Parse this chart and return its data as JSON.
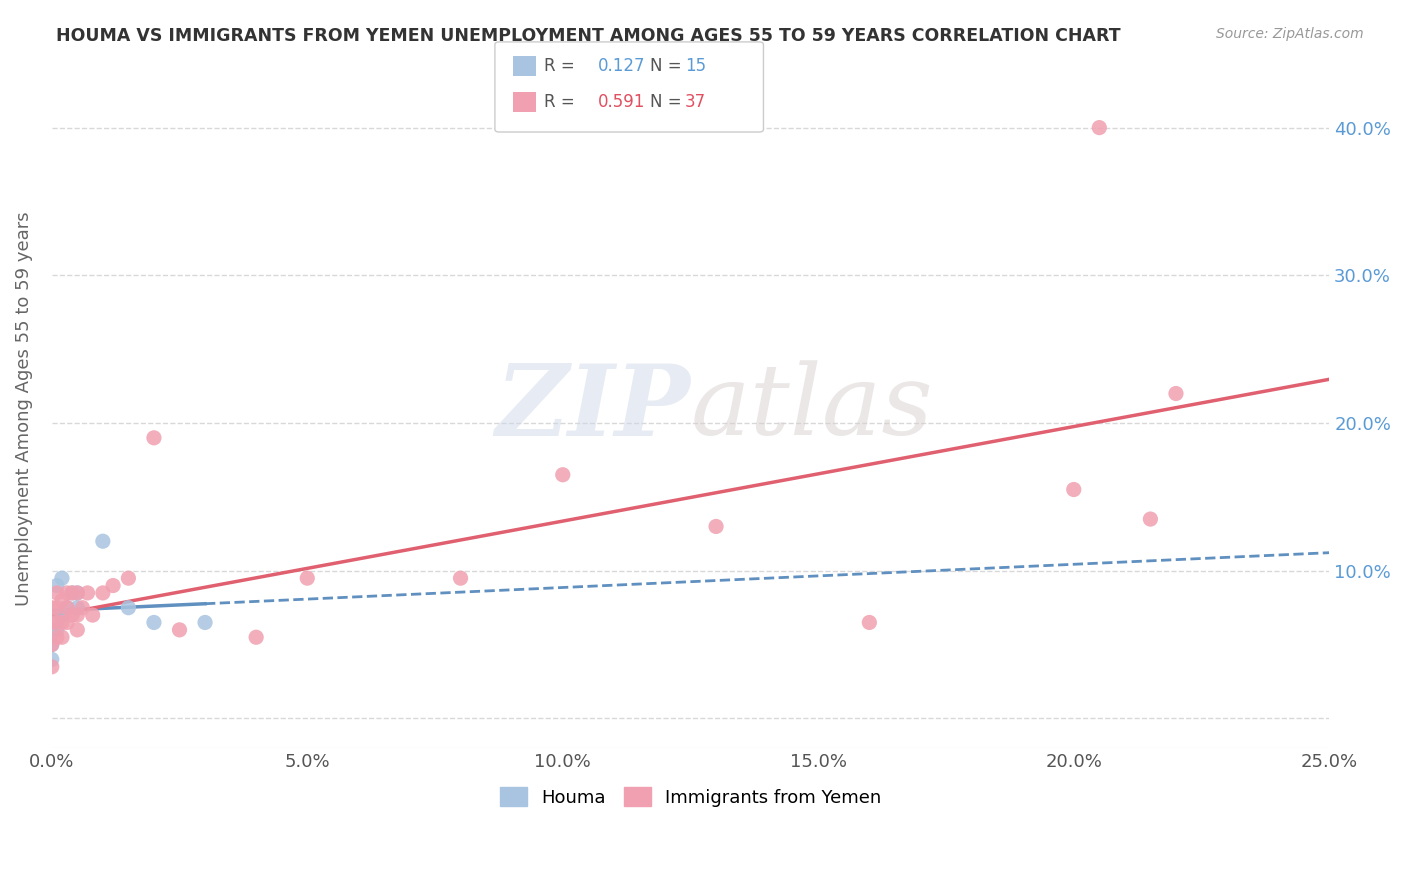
{
  "title": "HOUMA VS IMMIGRANTS FROM YEMEN UNEMPLOYMENT AMONG AGES 55 TO 59 YEARS CORRELATION CHART",
  "source": "Source: ZipAtlas.com",
  "ylabel": "Unemployment Among Ages 55 to 59 years",
  "xlim": [
    0.0,
    0.25
  ],
  "ylim": [
    -0.02,
    0.44
  ],
  "xticks": [
    0.0,
    0.05,
    0.1,
    0.15,
    0.2,
    0.25
  ],
  "xticklabels": [
    "0.0%",
    "5.0%",
    "10.0%",
    "15.0%",
    "20.0%",
    "25.0%"
  ],
  "yticks": [
    0.0,
    0.1,
    0.2,
    0.3,
    0.4
  ],
  "yticklabels": [
    "",
    "10.0%",
    "20.0%",
    "30.0%",
    "40.0%"
  ],
  "houma_R": 0.127,
  "houma_N": 15,
  "yemen_R": 0.591,
  "yemen_N": 37,
  "houma_color": "#a8c4e0",
  "yemen_color": "#f0a0b0",
  "houma_line_color": "#6090c0",
  "yemen_line_color": "#e06070",
  "background_color": "#ffffff",
  "grid_color": "#d8d8d8",
  "watermark": "ZIPatlas",
  "houma_x": [
    0.0,
    0.0,
    0.0,
    0.001,
    0.001,
    0.002,
    0.002,
    0.003,
    0.004,
    0.005,
    0.005,
    0.01,
    0.015,
    0.02,
    0.03
  ],
  "houma_y": [
    0.04,
    0.05,
    0.06,
    0.06,
    0.09,
    0.07,
    0.095,
    0.075,
    0.085,
    0.075,
    0.085,
    0.12,
    0.075,
    0.065,
    0.065
  ],
  "yemen_x": [
    0.0,
    0.0,
    0.0,
    0.0,
    0.001,
    0.001,
    0.001,
    0.001,
    0.002,
    0.002,
    0.002,
    0.003,
    0.003,
    0.003,
    0.004,
    0.004,
    0.005,
    0.005,
    0.005,
    0.006,
    0.007,
    0.008,
    0.01,
    0.012,
    0.015,
    0.02,
    0.025,
    0.04,
    0.05,
    0.08,
    0.1,
    0.13,
    0.16,
    0.2,
    0.205,
    0.215,
    0.22
  ],
  "yemen_y": [
    0.035,
    0.05,
    0.065,
    0.075,
    0.055,
    0.065,
    0.075,
    0.085,
    0.055,
    0.065,
    0.08,
    0.065,
    0.075,
    0.085,
    0.07,
    0.085,
    0.06,
    0.07,
    0.085,
    0.075,
    0.085,
    0.07,
    0.085,
    0.09,
    0.095,
    0.19,
    0.06,
    0.055,
    0.095,
    0.095,
    0.165,
    0.13,
    0.065,
    0.155,
    0.4,
    0.135,
    0.22
  ]
}
